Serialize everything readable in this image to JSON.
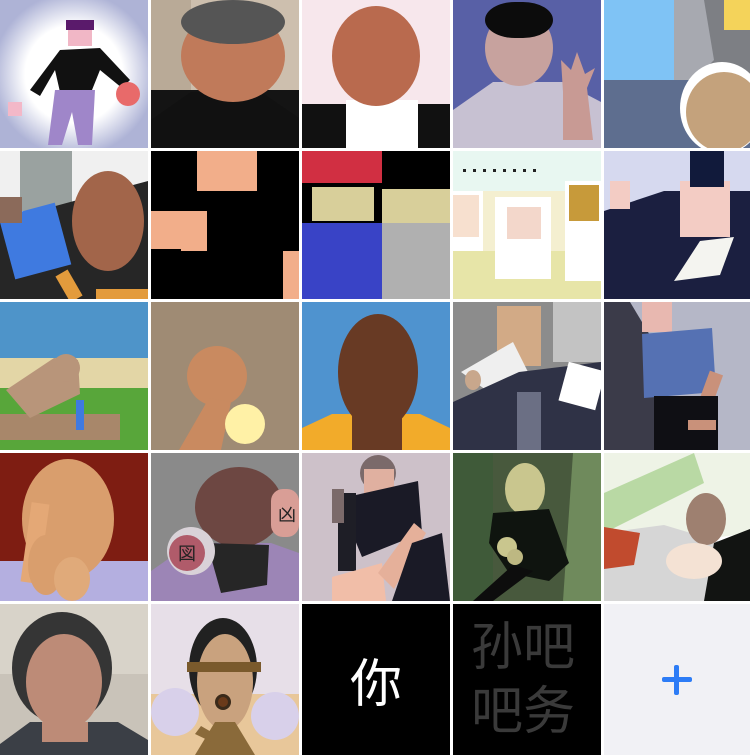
{
  "gallery": {
    "tile_20_text": "你",
    "tile_21_text": "孙吧\n吧务",
    "add_button_glyph": "+",
    "accent_color": "#2d7cf6"
  }
}
